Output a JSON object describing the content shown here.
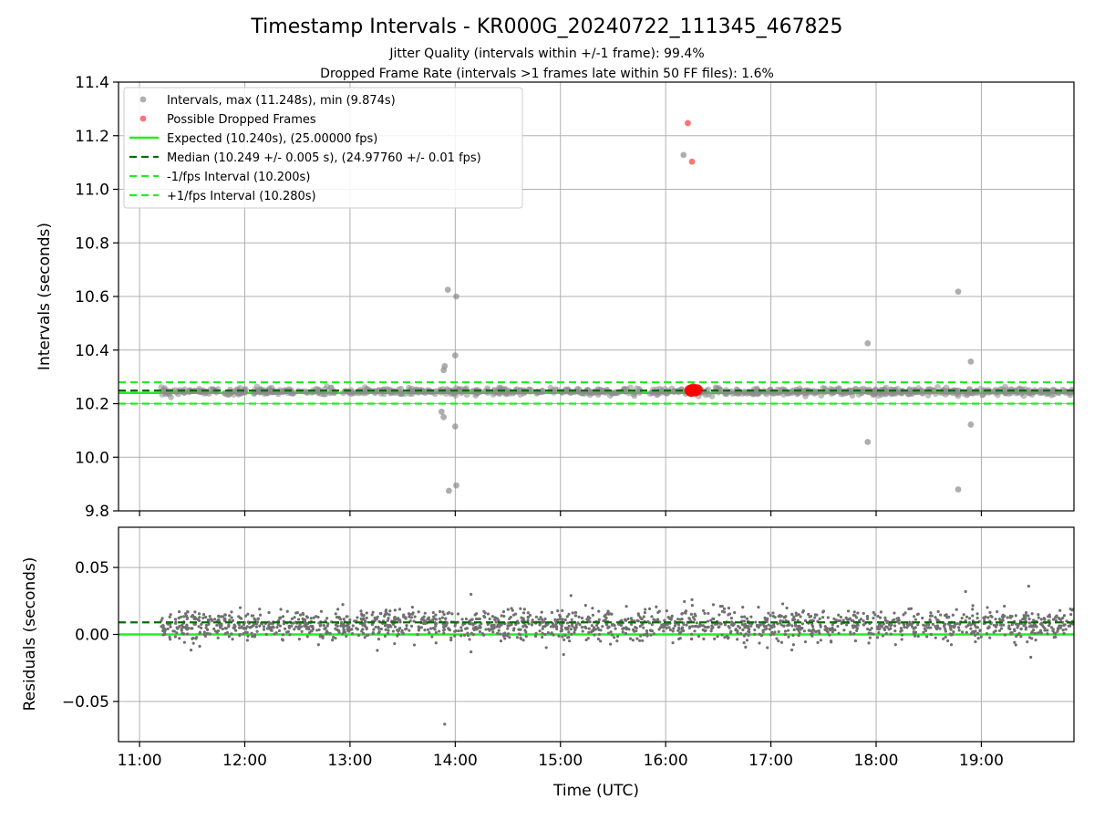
{
  "figure": {
    "title": "Timestamp Intervals - KR000G_20240722_111345_467825",
    "subtitle1": "Jitter Quality (intervals within +/-1 frame): 99.4%",
    "subtitle2": "Dropped Frame Rate (intervals >1 frames late within 50 FF files): 1.6%"
  },
  "colors": {
    "intervals": "#8c8c8c",
    "dropped": "#ff0000",
    "expected": "#22ee22",
    "median": "#0a6b0a",
    "bounds": "#22ee22",
    "residuals": "#707070",
    "grid": "#b0b0b0"
  },
  "chart_data": [
    {
      "type": "scatter",
      "panel": "top",
      "title": "",
      "xlabel": "",
      "ylabel": "Intervals (seconds)",
      "x_axis": "time-of-day (hours UTC)",
      "xlim": [
        10.8,
        19.88
      ],
      "ylim": [
        9.8,
        11.4
      ],
      "x_ticks": [
        11,
        12,
        13,
        14,
        15,
        16,
        17,
        18,
        19
      ],
      "y_ticks": [
        9.8,
        10.0,
        10.2,
        10.4,
        10.6,
        10.8,
        11.0,
        11.2,
        11.4
      ],
      "y_tick_labels": [
        "9.8",
        "10.0",
        "10.2",
        "10.4",
        "10.6",
        "10.8",
        "11.0",
        "11.2",
        "11.4"
      ],
      "grid": true,
      "legend_position": "top-left",
      "legend": [
        "Intervals, max (11.248s), min (9.874s)",
        "Possible Dropped Frames",
        "Expected (10.240s), (25.00000 fps)",
        "Median (10.249 +/- 0.005 s), (24.97760 +/- 0.01 fps)",
        "-1/fps Interval (10.200s)",
        "+1/fps Interval (10.280s)"
      ],
      "lines": {
        "expected": 10.24,
        "median": 10.249,
        "minus_one_fps": 10.2,
        "plus_one_fps": 10.28
      },
      "band": {
        "x_range": [
          11.2,
          19.88
        ],
        "y_center": 10.245,
        "y_spread": 0.012
      },
      "outliers": [
        {
          "x": 13.89,
          "y": 10.325
        },
        {
          "x": 13.9,
          "y": 10.34
        },
        {
          "x": 13.93,
          "y": 10.625
        },
        {
          "x": 14.0,
          "y": 10.38
        },
        {
          "x": 14.01,
          "y": 10.6
        },
        {
          "x": 13.87,
          "y": 10.17
        },
        {
          "x": 13.89,
          "y": 10.15
        },
        {
          "x": 14.0,
          "y": 10.115
        },
        {
          "x": 14.01,
          "y": 9.895
        },
        {
          "x": 13.94,
          "y": 9.875
        },
        {
          "x": 16.17,
          "y": 11.128
        },
        {
          "x": 17.92,
          "y": 10.425
        },
        {
          "x": 17.92,
          "y": 10.057
        },
        {
          "x": 18.78,
          "y": 10.618
        },
        {
          "x": 18.9,
          "y": 10.357
        },
        {
          "x": 18.9,
          "y": 10.122
        },
        {
          "x": 18.78,
          "y": 9.88
        }
      ],
      "dropped_frames": [
        {
          "x": 16.21,
          "y": 11.247
        },
        {
          "x": 16.25,
          "y": 11.103
        },
        {
          "x": 16.23,
          "y": 10.25
        },
        {
          "x": 16.26,
          "y": 10.255
        },
        {
          "x": 16.28,
          "y": 10.248
        },
        {
          "x": 16.3,
          "y": 10.252
        },
        {
          "x": 16.24,
          "y": 10.246
        },
        {
          "x": 16.27,
          "y": 10.25
        }
      ]
    },
    {
      "type": "scatter",
      "panel": "bottom",
      "title": "",
      "xlabel": "Time (UTC)",
      "ylabel": "Residuals (seconds)",
      "xlim": [
        10.8,
        19.88
      ],
      "ylim": [
        -0.08,
        0.08
      ],
      "x_ticks": [
        11,
        12,
        13,
        14,
        15,
        16,
        17,
        18,
        19
      ],
      "x_tick_labels": [
        "11:00",
        "12:00",
        "13:00",
        "14:00",
        "15:00",
        "16:00",
        "17:00",
        "18:00",
        "19:00"
      ],
      "y_ticks": [
        -0.05,
        0.0,
        0.05
      ],
      "y_tick_labels": [
        "−0.05",
        "0.00",
        "0.05"
      ],
      "grid": true,
      "lines": {
        "zero": 0.0,
        "median": 0.009
      },
      "band": {
        "x_range": [
          11.2,
          19.88
        ],
        "y_center": 0.007,
        "y_spread": 0.007
      },
      "outliers": [
        {
          "x": 13.9,
          "y": -0.067
        },
        {
          "x": 19.45,
          "y": 0.036
        },
        {
          "x": 18.85,
          "y": 0.032
        },
        {
          "x": 14.15,
          "y": 0.03
        },
        {
          "x": 15.1,
          "y": 0.029
        },
        {
          "x": 16.25,
          "y": 0.026
        },
        {
          "x": 19.47,
          "y": -0.017
        },
        {
          "x": 14.15,
          "y": -0.013
        },
        {
          "x": 15.03,
          "y": -0.015
        }
      ]
    }
  ]
}
